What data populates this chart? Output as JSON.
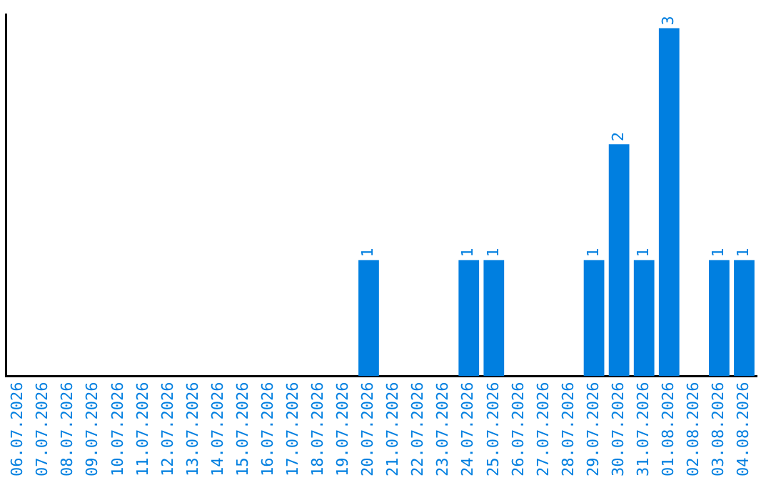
{
  "chart_data": {
    "type": "bar",
    "categories": [
      "06.07.2026",
      "07.07.2026",
      "08.07.2026",
      "09.07.2026",
      "10.07.2026",
      "11.07.2026",
      "12.07.2026",
      "13.07.2026",
      "14.07.2026",
      "15.07.2026",
      "16.07.2026",
      "17.07.2026",
      "18.07.2026",
      "19.07.2026",
      "20.07.2026",
      "21.07.2026",
      "22.07.2026",
      "23.07.2026",
      "24.07.2026",
      "25.07.2026",
      "26.07.2026",
      "27.07.2026",
      "28.07.2026",
      "29.07.2026",
      "30.07.2026",
      "31.07.2026",
      "01.08.2026",
      "02.08.2026",
      "03.08.2026",
      "04.08.2026"
    ],
    "values": [
      null,
      null,
      null,
      null,
      null,
      null,
      null,
      null,
      null,
      null,
      null,
      null,
      null,
      null,
      1,
      null,
      null,
      null,
      1,
      1,
      null,
      null,
      null,
      1,
      2,
      1,
      3,
      null,
      1,
      1
    ],
    "data_labels": true,
    "color": "#007fe0",
    "tick_labels": "x",
    "grid": false,
    "legend": false
  }
}
